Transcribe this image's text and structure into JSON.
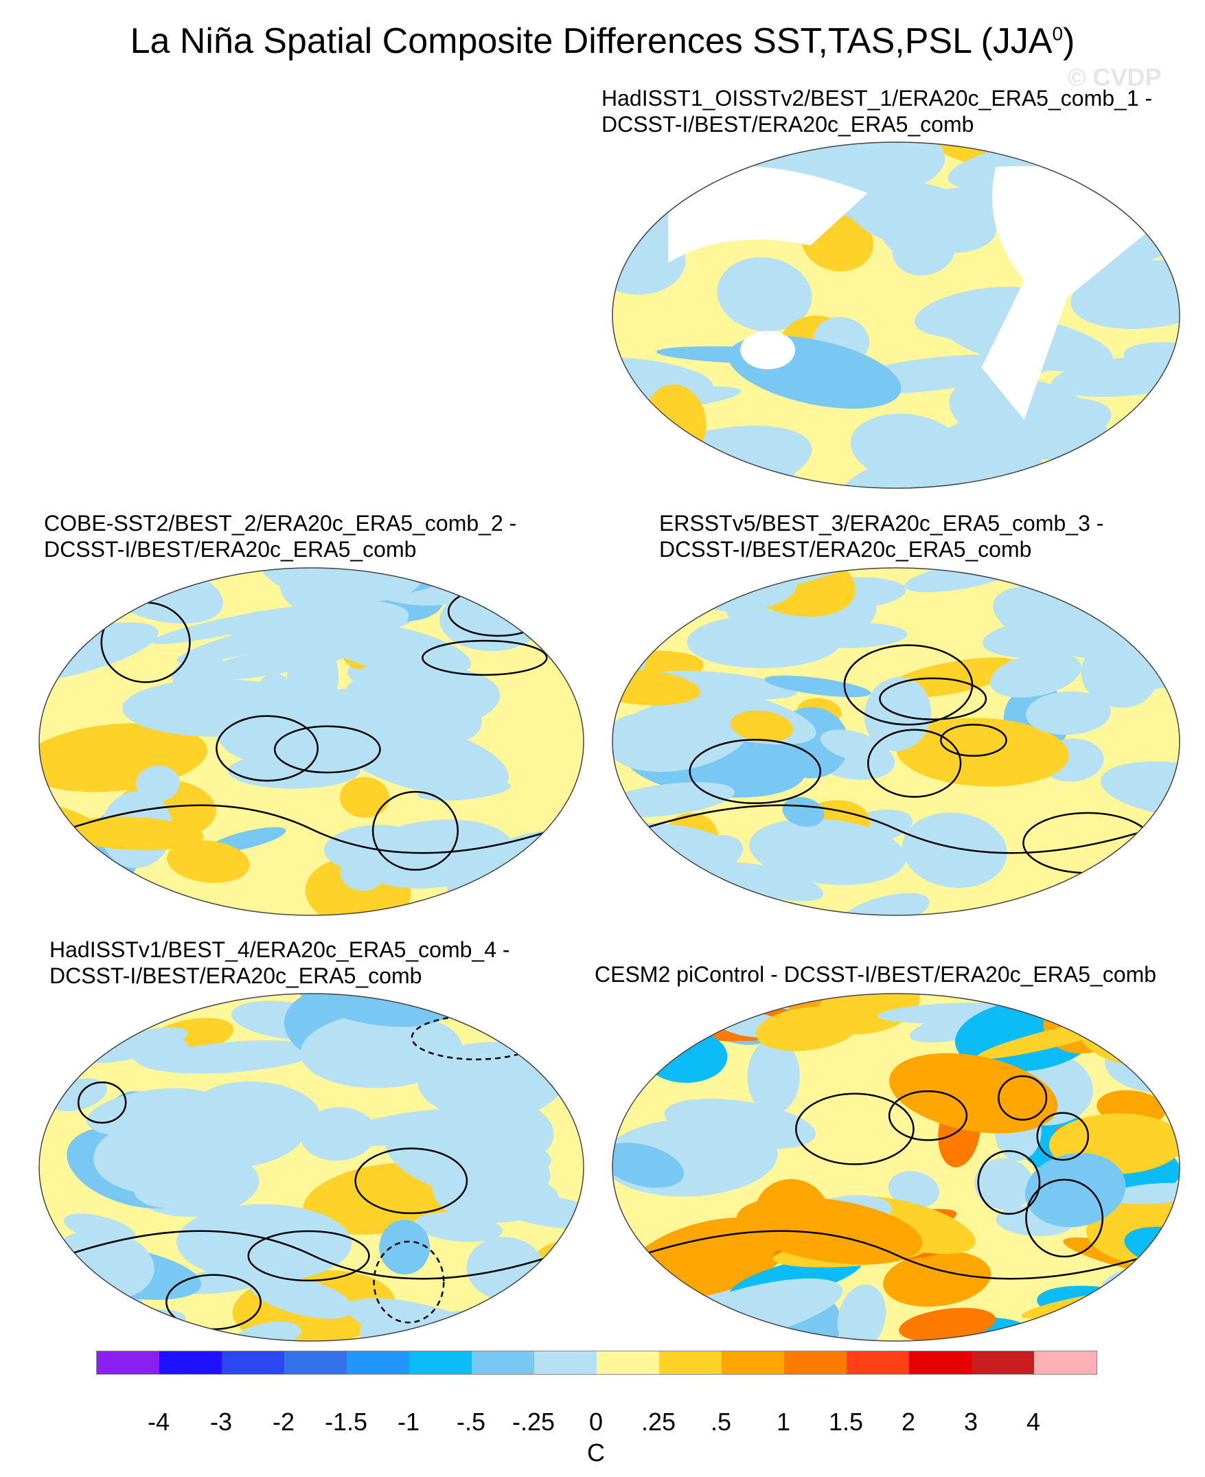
{
  "title": "La Niña Spatial Composite Differences SST,TAS,PSL (JJA",
  "title_sup": "0",
  "title_close": ")",
  "watermark": "© CVDP",
  "panels": [
    {
      "label": "HadISST1_OISSTv2/BEST_1/ERA20c_ERA5_comb_1 -\nDCSST-I/BEST/ERA20c_ERA5_comb",
      "style": "cool-weak",
      "contours": false
    },
    {
      "label": "COBE-SST2/BEST_2/ERA20c_ERA5_comb_2 -\nDCSST-I/BEST/ERA20c_ERA5_comb",
      "style": "weak",
      "contours": true
    },
    {
      "label": "ERSSTv5/BEST_3/ERA20c_ERA5_comb_3 -\nDCSST-I/BEST/ERA20c_ERA5_comb",
      "style": "weak",
      "contours": true
    },
    {
      "label": "HadISSTv1/BEST_4/ERA20c_ERA5_comb_4 -\nDCSST-I/BEST/ERA20c_ERA5_comb",
      "style": "weak",
      "contours": true
    },
    {
      "label": "CESM2 piControl - DCSST-I/BEST/ERA20c_ERA5_comb",
      "style": "strong",
      "contours": true
    }
  ],
  "chart_data": {
    "type": "heatmap",
    "projection": "Robinson-like world map, Pacific-centered",
    "variables": [
      "SST",
      "TAS",
      "PSL"
    ],
    "season": "JJA",
    "colorbar": {
      "unit": "C",
      "tick_labels": [
        "-4",
        "-3",
        "-2",
        "-1.5",
        "-1",
        "-.5",
        "-.25",
        "0",
        ".25",
        ".5",
        "1",
        "1.5",
        "2",
        "3",
        "4"
      ],
      "colors": [
        "#8b1ff0",
        "#1f10ff",
        "#2a47f0",
        "#3472ea",
        "#2196fb",
        "#0bbcf6",
        "#78c8f3",
        "#b6e0f4",
        "#fff799",
        "#ffd229",
        "#ffa602",
        "#ff7b00",
        "#ff3f14",
        "#e60000",
        "#c81e1e",
        "#ffb0b4"
      ]
    },
    "psl_contours": "black solid (positive) / dashed (negative)"
  }
}
